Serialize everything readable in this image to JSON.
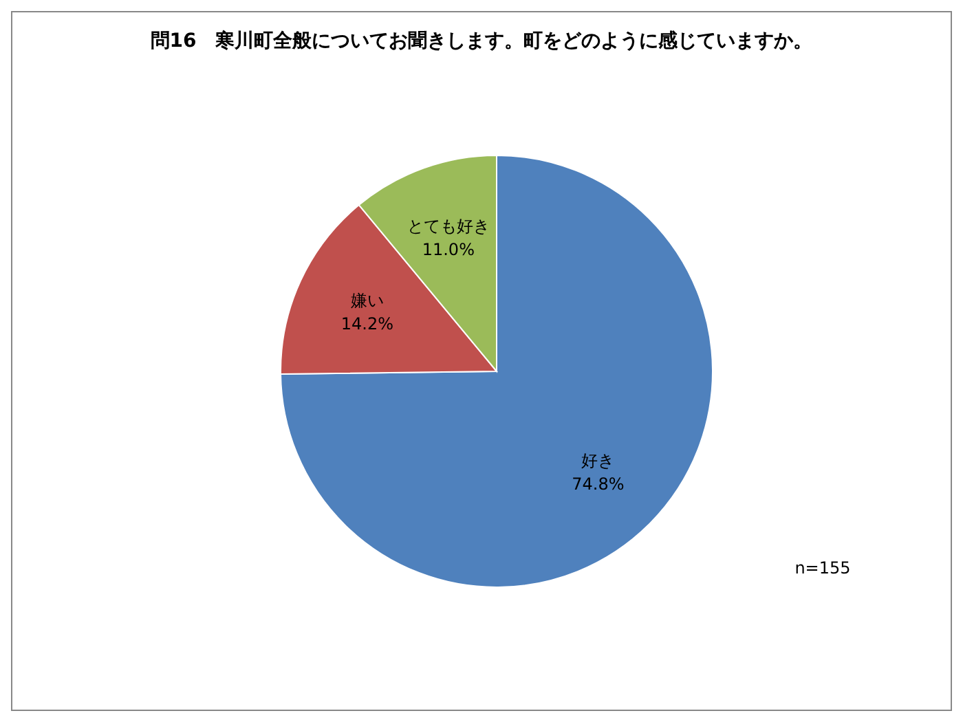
{
  "chart_data": {
    "type": "pie",
    "title": "問16　寒川町全般についてお聞きします。町をどのように感じていますか。",
    "categories": [
      "好き",
      "嫌い",
      "とても好き"
    ],
    "values": [
      74.8,
      14.2,
      11.0
    ],
    "colors": [
      "#4f81bd",
      "#c0504d",
      "#9bbb59"
    ],
    "value_labels": [
      "74.8%",
      "14.2%",
      "11.0%"
    ],
    "annotations": [
      "n=155"
    ],
    "legend": false
  }
}
